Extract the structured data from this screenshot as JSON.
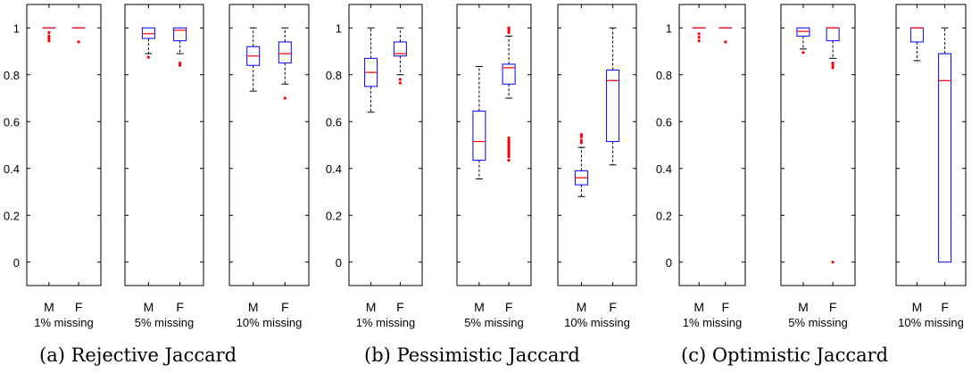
{
  "chart_data": [
    {
      "type": "box",
      "caption": "(a) Rejective Jaccard",
      "y_ticks": [
        "0",
        "0.2",
        "0.4",
        "0.6",
        "0.8",
        "1"
      ],
      "ylim": [
        -0.1,
        1.1
      ],
      "panels": [
        {
          "label": "1% missing",
          "categories": [
            "M",
            "F"
          ],
          "boxes": [
            {
              "q1": 1.0,
              "median": 1.0,
              "q3": 1.0,
              "whisker_low": 1.0,
              "whisker_high": 1.0,
              "outliers": [
                0.98,
                0.965,
                0.955,
                0.945
              ]
            },
            {
              "q1": 1.0,
              "median": 1.0,
              "q3": 1.0,
              "whisker_low": 1.0,
              "whisker_high": 1.0,
              "outliers": [
                0.94
              ]
            }
          ]
        },
        {
          "label": "5% missing",
          "categories": [
            "M",
            "F"
          ],
          "boxes": [
            {
              "q1": 0.955,
              "median": 0.975,
              "q3": 1.0,
              "whisker_low": 0.89,
              "whisker_high": 1.0,
              "outliers": [
                0.875
              ]
            },
            {
              "q1": 0.945,
              "median": 0.99,
              "q3": 1.0,
              "whisker_low": 0.89,
              "whisker_high": 1.0,
              "outliers": [
                0.85,
                0.84
              ]
            }
          ]
        },
        {
          "label": "10% missing",
          "categories": [
            "M",
            "F"
          ],
          "boxes": [
            {
              "q1": 0.84,
              "median": 0.88,
              "q3": 0.92,
              "whisker_low": 0.73,
              "whisker_high": 1.0,
              "outliers": []
            },
            {
              "q1": 0.85,
              "median": 0.89,
              "q3": 0.94,
              "whisker_low": 0.76,
              "whisker_high": 1.0,
              "outliers": [
                0.7
              ]
            }
          ]
        }
      ]
    },
    {
      "type": "box",
      "caption": "(b) Pessimistic Jaccard",
      "y_ticks": [
        "0",
        "0.2",
        "0.4",
        "0.6",
        "0.8",
        "1"
      ],
      "ylim": [
        -0.1,
        1.1
      ],
      "panels": [
        {
          "label": "1% missing",
          "categories": [
            "M",
            "F"
          ],
          "boxes": [
            {
              "q1": 0.75,
              "median": 0.81,
              "q3": 0.87,
              "whisker_low": 0.64,
              "whisker_high": 1.0,
              "outliers": []
            },
            {
              "q1": 0.88,
              "median": 0.89,
              "q3": 0.94,
              "whisker_low": 0.8,
              "whisker_high": 1.0,
              "outliers": [
                0.78,
                0.765
              ]
            }
          ]
        },
        {
          "label": "5% missing",
          "categories": [
            "M",
            "F"
          ],
          "boxes": [
            {
              "q1": 0.435,
              "median": 0.515,
              "q3": 0.645,
              "whisker_low": 0.355,
              "whisker_high": 0.835,
              "outliers": []
            },
            {
              "q1": 0.76,
              "median": 0.83,
              "q3": 0.845,
              "whisker_low": 0.7,
              "whisker_high": 0.965,
              "outliers": [
                1.0,
                0.99,
                0.98,
                0.53,
                0.52,
                0.51,
                0.5,
                0.49,
                0.48,
                0.47,
                0.46,
                0.45,
                0.435
              ]
            }
          ]
        },
        {
          "label": "10% missing",
          "categories": [
            "M",
            "F"
          ],
          "boxes": [
            {
              "q1": 0.33,
              "median": 0.36,
              "q3": 0.39,
              "whisker_low": 0.28,
              "whisker_high": 0.49,
              "outliers": [
                0.545,
                0.535,
                0.52,
                0.51
              ]
            },
            {
              "q1": 0.515,
              "median": 0.775,
              "q3": 0.82,
              "whisker_low": 0.415,
              "whisker_high": 1.0,
              "outliers": []
            }
          ]
        }
      ]
    },
    {
      "type": "box",
      "caption": "(c) Optimistic Jaccard",
      "y_ticks": [
        "0",
        "0.2",
        "0.4",
        "0.6",
        "0.8",
        "1"
      ],
      "ylim": [
        -0.1,
        1.1
      ],
      "panels": [
        {
          "label": "1% missing",
          "categories": [
            "M",
            "F"
          ],
          "boxes": [
            {
              "q1": 1.0,
              "median": 1.0,
              "q3": 1.0,
              "whisker_low": 1.0,
              "whisker_high": 1.0,
              "outliers": [
                0.975,
                0.96,
                0.945
              ]
            },
            {
              "q1": 1.0,
              "median": 1.0,
              "q3": 1.0,
              "whisker_low": 1.0,
              "whisker_high": 1.0,
              "outliers": [
                0.94
              ]
            }
          ]
        },
        {
          "label": "5% missing",
          "categories": [
            "M",
            "F"
          ],
          "boxes": [
            {
              "q1": 0.965,
              "median": 0.985,
              "q3": 1.0,
              "whisker_low": 0.91,
              "whisker_high": 1.0,
              "outliers": [
                0.895
              ]
            },
            {
              "q1": 0.945,
              "median": 1.0,
              "q3": 1.0,
              "whisker_low": 0.87,
              "whisker_high": 1.0,
              "outliers": [
                0.85,
                0.84,
                0.83,
                0.0
              ]
            }
          ]
        },
        {
          "label": "10% missing",
          "categories": [
            "M",
            "F"
          ],
          "boxes": [
            {
              "q1": 0.94,
              "median": 1.0,
              "q3": 1.0,
              "whisker_low": 0.86,
              "whisker_high": 1.0,
              "outliers": []
            },
            {
              "q1": 0.0,
              "median": 0.775,
              "q3": 0.89,
              "whisker_low": 0.0,
              "whisker_high": 1.0,
              "outliers": []
            }
          ]
        }
      ]
    }
  ],
  "colors": {
    "box": "#0000ff",
    "median": "#ff0000",
    "outlier": "#ff0000",
    "whisker": "#000000",
    "axes": "#000000"
  }
}
